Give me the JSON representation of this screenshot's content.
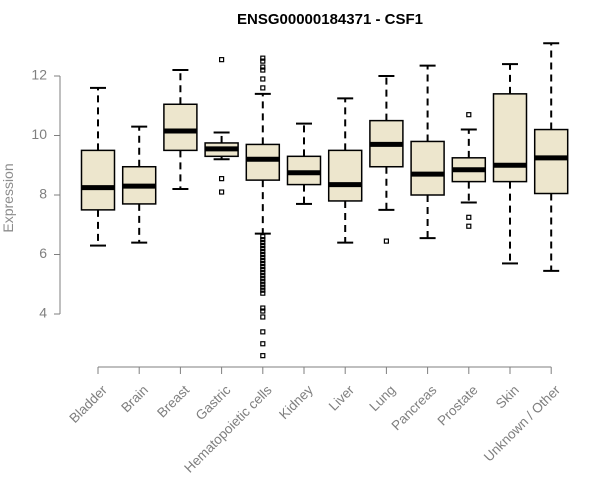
{
  "chart_data": {
    "type": "boxplot",
    "title": "ENSG00000184371 - CSF1",
    "xlabel": "",
    "ylabel": "Expression",
    "ylim": [
      2.4,
      13.2
    ],
    "yticks": [
      4,
      6,
      8,
      10,
      12
    ],
    "grid": false,
    "legend": "none",
    "box_fill": "#ede6cd",
    "stroke_color": "#000000",
    "axis_color": "#7f7f7f",
    "series": [
      {
        "category": "Bladder",
        "whisker_low": 6.3,
        "q1": 7.5,
        "median": 8.25,
        "q3": 9.5,
        "whisker_high": 11.6,
        "outliers": []
      },
      {
        "category": "Brain",
        "whisker_low": 6.4,
        "q1": 7.7,
        "median": 8.3,
        "q3": 8.95,
        "whisker_high": 10.3,
        "outliers": []
      },
      {
        "category": "Breast",
        "whisker_low": 8.2,
        "q1": 9.5,
        "median": 10.15,
        "q3": 11.05,
        "whisker_high": 12.2,
        "outliers": []
      },
      {
        "category": "Gastric",
        "whisker_low": 9.2,
        "q1": 9.3,
        "median": 9.55,
        "q3": 9.75,
        "whisker_high": 10.1,
        "outliers": [
          12.55,
          8.55,
          8.1
        ]
      },
      {
        "category": "Hematopoietic cells",
        "whisker_low": 6.7,
        "q1": 8.5,
        "median": 9.2,
        "q3": 9.7,
        "whisker_high": 11.4,
        "outliers": [
          12.6,
          12.5,
          12.3,
          12.2,
          11.9,
          11.6,
          6.6,
          6.5,
          6.4,
          6.3,
          6.2,
          6.1,
          6.0,
          5.9,
          5.8,
          5.7,
          5.6,
          5.5,
          5.4,
          5.3,
          5.2,
          5.1,
          5.0,
          4.9,
          4.8,
          4.7,
          4.2,
          4.1,
          3.9,
          3.4,
          3.0,
          2.6
        ]
      },
      {
        "category": "Kidney",
        "whisker_low": 7.7,
        "q1": 8.35,
        "median": 8.75,
        "q3": 9.3,
        "whisker_high": 10.4,
        "outliers": []
      },
      {
        "category": "Liver",
        "whisker_low": 6.4,
        "q1": 7.8,
        "median": 8.35,
        "q3": 9.5,
        "whisker_high": 11.25,
        "outliers": []
      },
      {
        "category": "Lung",
        "whisker_low": 7.5,
        "q1": 8.95,
        "median": 9.7,
        "q3": 10.5,
        "whisker_high": 12.0,
        "outliers": [
          6.45
        ]
      },
      {
        "category": "Pancreas",
        "whisker_low": 6.55,
        "q1": 8.0,
        "median": 8.7,
        "q3": 9.8,
        "whisker_high": 12.35,
        "outliers": []
      },
      {
        "category": "Prostate",
        "whisker_low": 7.75,
        "q1": 8.45,
        "median": 8.85,
        "q3": 9.25,
        "whisker_high": 10.2,
        "outliers": [
          10.7,
          7.25,
          6.95
        ]
      },
      {
        "category": "Skin",
        "whisker_low": 5.7,
        "q1": 8.45,
        "median": 9.0,
        "q3": 11.4,
        "whisker_high": 12.4,
        "outliers": []
      },
      {
        "category": "Unknown / Other",
        "whisker_low": 5.45,
        "q1": 8.05,
        "median": 9.25,
        "q3": 10.2,
        "whisker_high": 13.1,
        "outliers": []
      }
    ]
  }
}
